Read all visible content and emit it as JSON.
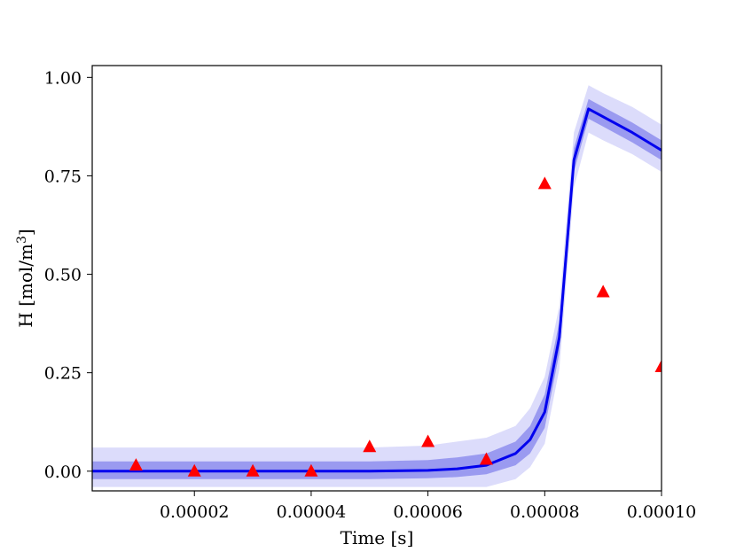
{
  "chart_data": {
    "type": "line",
    "xlabel": "Time [s]",
    "ylabel": "H [mol/m",
    "ylabel_sup": "3",
    "ylabel_close": "]",
    "xlim": [
      2.5e-06,
      0.0001
    ],
    "ylim": [
      -0.05,
      1.03
    ],
    "x_ticks": [
      2e-05,
      4e-05,
      6e-05,
      8e-05,
      0.0001
    ],
    "x_tick_labels": [
      "0.00002",
      "0.00004",
      "0.00006",
      "0.00008",
      "0.00010"
    ],
    "y_ticks": [
      0.0,
      0.25,
      0.5,
      0.75,
      1.0
    ],
    "y_tick_labels": [
      "0.00",
      "0.25",
      "0.50",
      "0.75",
      "1.00"
    ],
    "grid": false,
    "colors": {
      "mean_line": "#0000ee",
      "inner_band": "#9a9af0",
      "outer_band": "#dcdcfb",
      "markers": "#ff0000"
    },
    "model": {
      "x": [
        2.5e-06,
        1e-05,
        2e-05,
        3e-05,
        4e-05,
        5e-05,
        6e-05,
        6.5e-05,
        7e-05,
        7.5e-05,
        7.75e-05,
        8e-05,
        8.25e-05,
        8.5e-05,
        8.75e-05,
        9e-05,
        9.5e-05,
        0.0001
      ],
      "mean": [
        0.0,
        0.0,
        0.0,
        0.0,
        0.0,
        0.0,
        0.002,
        0.006,
        0.015,
        0.045,
        0.08,
        0.15,
        0.34,
        0.79,
        0.92,
        0.9,
        0.86,
        0.815
      ],
      "inner_low": [
        -0.02,
        -0.02,
        -0.02,
        -0.02,
        -0.02,
        -0.02,
        -0.018,
        -0.015,
        -0.008,
        0.015,
        0.045,
        0.11,
        0.3,
        0.76,
        0.895,
        0.875,
        0.835,
        0.79
      ],
      "inner_high": [
        0.025,
        0.025,
        0.025,
        0.025,
        0.025,
        0.025,
        0.028,
        0.035,
        0.045,
        0.075,
        0.115,
        0.195,
        0.38,
        0.82,
        0.945,
        0.925,
        0.885,
        0.84
      ],
      "outer_low": [
        -0.04,
        -0.04,
        -0.04,
        -0.04,
        -0.04,
        -0.04,
        -0.04,
        -0.04,
        -0.04,
        -0.02,
        0.01,
        0.07,
        0.26,
        0.72,
        0.86,
        0.84,
        0.805,
        0.76
      ],
      "outer_high": [
        0.06,
        0.06,
        0.06,
        0.06,
        0.06,
        0.06,
        0.065,
        0.075,
        0.085,
        0.115,
        0.16,
        0.24,
        0.42,
        0.86,
        0.98,
        0.96,
        0.925,
        0.88
      ]
    },
    "observations": {
      "x": [
        1e-05,
        2e-05,
        3e-05,
        4e-05,
        5e-05,
        6e-05,
        7e-05,
        8e-05,
        9e-05,
        0.0001
      ],
      "y": [
        0.015,
        0.0,
        0.0,
        0.0,
        0.062,
        0.075,
        0.03,
        0.73,
        0.455,
        0.265
      ]
    }
  }
}
